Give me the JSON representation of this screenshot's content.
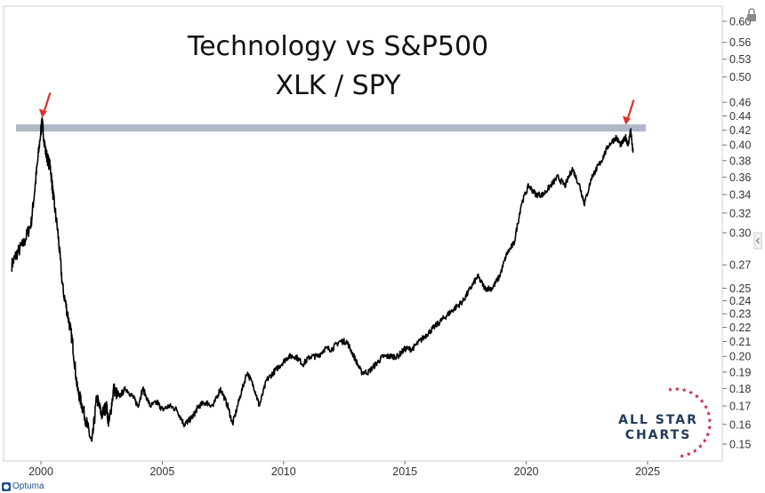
{
  "chart_data": {
    "type": "line",
    "title": "Technology vs S&P500",
    "subtitle": "XLK / SPY",
    "xlabel": "",
    "ylabel": "",
    "x_ticks": [
      "2000",
      "2005",
      "2010",
      "2015",
      "2020",
      "2025"
    ],
    "x_range": [
      1998.8,
      2027.8
    ],
    "y_scale": "log",
    "y_ticks": [
      "0.15",
      "0.16",
      "0.17",
      "0.18",
      "0.19",
      "0.20",
      "0.21",
      "0.22",
      "0.23",
      "0.24",
      "0.25",
      "0.27",
      "0.30",
      "0.32",
      "0.34",
      "0.36",
      "0.38",
      "0.40",
      "0.42",
      "0.44",
      "0.46",
      "0.50",
      "0.53",
      "0.56",
      "0.60"
    ],
    "y_range": [
      0.144,
      0.61
    ],
    "grid": false,
    "legend": "none",
    "series": [
      {
        "x": [
          1998.8,
          1999.0,
          1999.3,
          1999.6,
          1999.8,
          2000.0,
          2000.05,
          2000.2,
          2000.4,
          2000.5,
          2000.7,
          2000.9,
          2001.1,
          2001.3,
          2001.5,
          2001.7,
          2001.9,
          2002.1,
          2002.3,
          2002.5,
          2002.7,
          2002.8,
          2003.0,
          2003.2,
          2003.5,
          2003.8,
          2004.0,
          2004.2,
          2004.5,
          2004.8,
          2005.0,
          2005.3,
          2005.6,
          2005.9,
          2006.1,
          2006.3,
          2006.5,
          2006.8,
          2007.1,
          2007.4,
          2007.7,
          2007.9,
          2008.2,
          2008.5,
          2008.8,
          2009.0,
          2009.3,
          2009.6,
          2009.9,
          2010.2,
          2010.5,
          2010.8,
          2011.1,
          2011.4,
          2011.7,
          2012.0,
          2012.3,
          2012.6,
          2012.9,
          2013.2,
          2013.5,
          2013.8,
          2014.1,
          2014.4,
          2014.7,
          2015.0,
          2015.3,
          2015.6,
          2015.9,
          2016.2,
          2016.5,
          2016.8,
          2017.1,
          2017.4,
          2017.7,
          2018.0,
          2018.3,
          2018.6,
          2018.9,
          2019.2,
          2019.5,
          2019.8,
          2020.1,
          2020.4,
          2020.7,
          2021.0,
          2021.3,
          2021.6,
          2021.9,
          2022.2,
          2022.4,
          2022.7,
          2022.9,
          2023.1,
          2023.4,
          2023.7,
          2023.9,
          2024.1,
          2024.2,
          2024.3,
          2024.4
        ],
        "values": [
          0.27,
          0.28,
          0.29,
          0.31,
          0.36,
          0.42,
          0.43,
          0.39,
          0.37,
          0.34,
          0.3,
          0.25,
          0.23,
          0.21,
          0.18,
          0.17,
          0.16,
          0.15,
          0.175,
          0.165,
          0.17,
          0.16,
          0.18,
          0.175,
          0.18,
          0.175,
          0.17,
          0.18,
          0.17,
          0.172,
          0.168,
          0.17,
          0.168,
          0.16,
          0.162,
          0.165,
          0.17,
          0.172,
          0.17,
          0.18,
          0.17,
          0.16,
          0.175,
          0.19,
          0.18,
          0.17,
          0.185,
          0.19,
          0.195,
          0.2,
          0.2,
          0.195,
          0.2,
          0.2,
          0.205,
          0.205,
          0.21,
          0.21,
          0.2,
          0.19,
          0.19,
          0.195,
          0.2,
          0.2,
          0.2,
          0.205,
          0.205,
          0.21,
          0.215,
          0.22,
          0.225,
          0.23,
          0.235,
          0.24,
          0.25,
          0.26,
          0.25,
          0.25,
          0.26,
          0.28,
          0.29,
          0.33,
          0.35,
          0.34,
          0.34,
          0.35,
          0.36,
          0.35,
          0.37,
          0.35,
          0.33,
          0.36,
          0.37,
          0.38,
          0.4,
          0.41,
          0.4,
          0.41,
          0.4,
          0.42,
          0.39
        ],
        "color": "#000000"
      }
    ],
    "annotations": [
      {
        "type": "horizontal-band",
        "y": 0.423,
        "color": "#aeb8c6"
      },
      {
        "type": "arrow",
        "x": 2000.05,
        "y": 0.43,
        "color": "#e0302a"
      },
      {
        "type": "arrow",
        "x": 2024.1,
        "y": 0.42,
        "color": "#e0302a"
      }
    ]
  },
  "logo": {
    "line1": "ALL STAR",
    "line2": "CHARTS",
    "star_color": "#c8243a"
  },
  "provider": {
    "name": "Optuma"
  },
  "icons": {
    "lock": "lock-icon",
    "collapse": "chevron-left-icon"
  }
}
